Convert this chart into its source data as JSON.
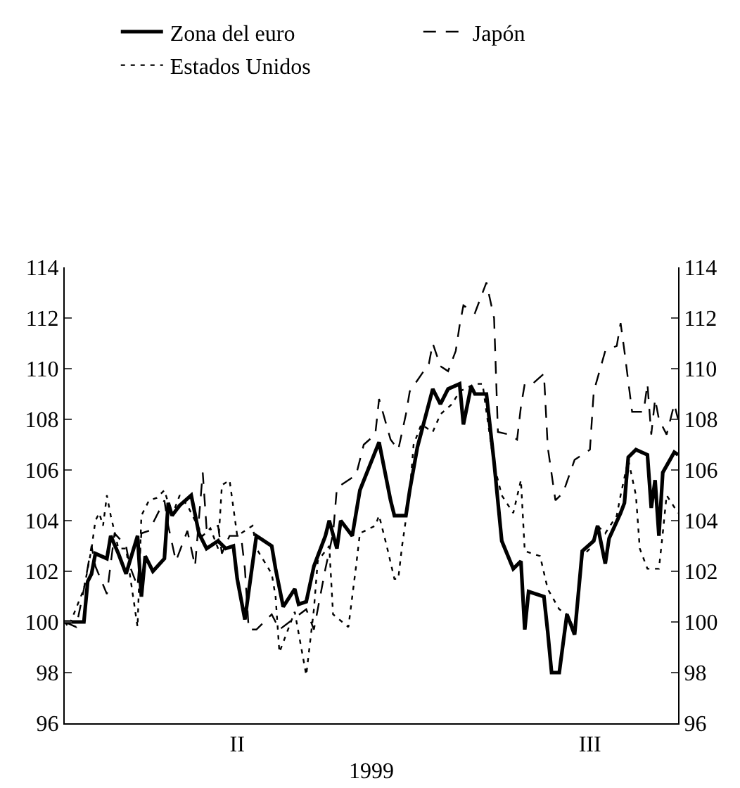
{
  "chart_data": {
    "type": "line",
    "xlabel": "1999",
    "legend": "top",
    "grid": false,
    "categories": [
      null,
      null,
      null,
      null,
      null,
      null,
      null,
      null,
      null,
      null,
      null,
      null,
      null,
      null,
      null,
      null,
      null,
      null,
      null,
      null,
      null,
      null,
      null,
      null,
      null,
      null,
      null,
      null,
      null,
      null,
      null,
      null,
      null,
      null,
      null,
      null,
      null,
      null,
      null,
      null,
      null,
      null,
      null,
      null,
      null,
      "II",
      null,
      null,
      null,
      null,
      null,
      null,
      null,
      null,
      null,
      null,
      null,
      null,
      null,
      null,
      null,
      null,
      null,
      null,
      null,
      null,
      null,
      null,
      null,
      null,
      null,
      null,
      null,
      null,
      null,
      null,
      null,
      null,
      null,
      null,
      null,
      null,
      null,
      null,
      null,
      null,
      null,
      null,
      null,
      null,
      null,
      null,
      null,
      null,
      null,
      null,
      null,
      null,
      null,
      null,
      null,
      null,
      null,
      null,
      null,
      null,
      null,
      null,
      null,
      null,
      null,
      null,
      null,
      null,
      null,
      null,
      null,
      null,
      null,
      null,
      null,
      null,
      null,
      null,
      null,
      null,
      null,
      null,
      null,
      null,
      null,
      null,
      null,
      null,
      null,
      null,
      null,
      "III",
      null,
      null,
      null,
      null,
      null,
      null,
      null,
      null,
      null,
      null,
      null,
      null,
      null,
      null,
      null,
      null,
      null,
      null,
      null,
      null,
      null,
      null,
      null
    ],
    "ylim": [
      96,
      114
    ],
    "yticks": [
      96,
      98,
      100,
      102,
      104,
      106,
      108,
      110,
      112,
      114
    ],
    "y2lim": [
      96,
      114
    ],
    "y2ticks": [
      96,
      98,
      100,
      102,
      104,
      106,
      108,
      110,
      112,
      114
    ],
    "series": [
      {
        "name": "Zona del euro",
        "color": "#000000",
        "line_style": "solid",
        "values": [
          100,
          null,
          null,
          null,
          null,
          100,
          101.6,
          101.9,
          102.7,
          null,
          null,
          102.5,
          103.4,
          null,
          102.7,
          null,
          101.9,
          null,
          null,
          103.4,
          101.0,
          102.6,
          null,
          102.0,
          null,
          null,
          102.5,
          104.7,
          104.2,
          null,
          104.6,
          null,
          null,
          105.0,
          null,
          103.5,
          null,
          102.9,
          null,
          null,
          103.2,
          null,
          102.9,
          null,
          103.0,
          101.7,
          null,
          100.1,
          null,
          null,
          103.4,
          null,
          null,
          null,
          103.0,
          102.1,
          null,
          100.6,
          null,
          null,
          101.3,
          100.7,
          null,
          100.8,
          null,
          102.2,
          null,
          null,
          103.4,
          104.0,
          null,
          102.9,
          104.0,
          null,
          null,
          103.4,
          null,
          105.2,
          null,
          null,
          null,
          null,
          107.1,
          null,
          null,
          104.8,
          104.2,
          null,
          null,
          104.2,
          105.2,
          null,
          106.9,
          null,
          null,
          null,
          109.2,
          null,
          108.6,
          null,
          109.2,
          null,
          null,
          109.4,
          107.8,
          null,
          109.3,
          109.0,
          null,
          null,
          109.0,
          null,
          106.3,
          null,
          103.2,
          null,
          null,
          102.1,
          null,
          102.4,
          99.7,
          101.2,
          null,
          null,
          null,
          101.0,
          99.6,
          98.0,
          null,
          98.0,
          null,
          100.3,
          null,
          99.5,
          null,
          102.8,
          null,
          null,
          103.2,
          103.8,
          null,
          102.3,
          103.3,
          null,
          null,
          104.3,
          104.7,
          106.5,
          null,
          106.8,
          null,
          null,
          106.6,
          104.5,
          105.6,
          103.4,
          105.9,
          null,
          null,
          106.7,
          106.6
        ]
      },
      {
        "name": "Japón",
        "color": "#000000",
        "line_style": "dashed",
        "values": [
          100,
          null,
          null,
          99.8,
          null,
          101.3,
          null,
          103.0,
          102.2,
          null,
          null,
          101.1,
          null,
          103.5,
          null,
          null,
          103.0,
          102.2,
          null,
          101.4,
          103.5,
          null,
          103.6,
          null,
          null,
          null,
          104.8,
          103.8,
          null,
          102.4,
          null,
          null,
          103.6,
          null,
          102.2,
          null,
          105.9,
          103.7,
          null,
          null,
          103.8,
          102.7,
          null,
          103.4,
          null,
          null,
          103.4,
          102.1,
          99.7,
          null,
          99.7,
          null,
          null,
          null,
          100.3,
          null,
          99.7,
          null,
          null,
          null,
          null,
          null,
          null,
          100.5,
          null,
          99.7,
          null,
          null,
          102.1,
          null,
          103.5,
          105.3,
          null,
          null,
          null,
          null,
          105.8,
          null,
          107.0,
          null,
          null,
          107.4,
          108.8,
          null,
          null,
          107.2,
          null,
          106.8,
          null,
          108.2,
          109.1,
          null,
          null,
          null,
          null,
          110.2,
          111.0,
          null,
          110.1,
          null,
          109.9,
          null,
          110.7,
          111.7,
          112.5,
          null,
          null,
          112.2,
          null,
          null,
          113.4,
          null,
          112.0,
          107.5,
          null,
          null,
          107.4,
          null,
          107.2,
          108.5,
          109.4,
          null,
          109.4,
          null,
          null,
          109.8,
          106.9,
          null,
          104.8,
          null,
          105.1,
          null,
          null,
          106.4,
          null,
          null,
          null,
          106.8,
          109.1,
          null,
          null,
          110.7,
          null,
          null,
          110.9,
          111.8,
          110.7,
          null,
          108.3,
          null,
          null,
          108.3,
          109.4,
          107.4,
          108.8,
          108.0,
          null,
          107.4,
          null,
          108.6,
          108.0
        ]
      },
      {
        "name": "Estados Unidos",
        "color": "#000000",
        "line_style": "dotted",
        "values": [
          100,
          99.8,
          null,
          null,
          null,
          101.3,
          null,
          102.9,
          104.0,
          104.3,
          103.8,
          105.0,
          104.2,
          null,
          102.9,
          null,
          102.9,
          null,
          null,
          99.8,
          104.2,
          null,
          104.8,
          null,
          104.9,
          null,
          105.2,
          null,
          104.2,
          null,
          105.0,
          null,
          104.6,
          null,
          null,
          null,
          103.4,
          null,
          103.7,
          null,
          102.9,
          105.4,
          null,
          105.6,
          null,
          103.4,
          null,
          null,
          null,
          103.8,
          102.9,
          null,
          null,
          null,
          101.9,
          101.0,
          98.8,
          null,
          null,
          null,
          100.4,
          null,
          null,
          97.9,
          null,
          100.5,
          102.4,
          null,
          null,
          103.0,
          100.3,
          null,
          null,
          null,
          99.8,
          null,
          102.2,
          103.5,
          null,
          null,
          null,
          103.8,
          104.2,
          null,
          103.0,
          null,
          101.7,
          101.7,
          103.0,
          null,
          105.1,
          107.0,
          null,
          107.8,
          null,
          null,
          107.5,
          null,
          108.2,
          null,
          null,
          108.6,
          null,
          109.1,
          null,
          null,
          null,
          109.4,
          null,
          109.4,
          108.3,
          null,
          106.2,
          null,
          105.0,
          null,
          null,
          104.3,
          null,
          105.6,
          102.8,
          null,
          null,
          null,
          102.6,
          null,
          101.3,
          null,
          null,
          100.5,
          null,
          100.3,
          null,
          99.7,
          null,
          102.6,
          null,
          102.9,
          null,
          103.8,
          null,
          103.5,
          null,
          null,
          104.2,
          105.0,
          null,
          106.4,
          null,
          105.0,
          102.9,
          null,
          102.1,
          null,
          null,
          102.1,
          103.5,
          105.0,
          null,
          null,
          104.3
        ]
      }
    ]
  }
}
